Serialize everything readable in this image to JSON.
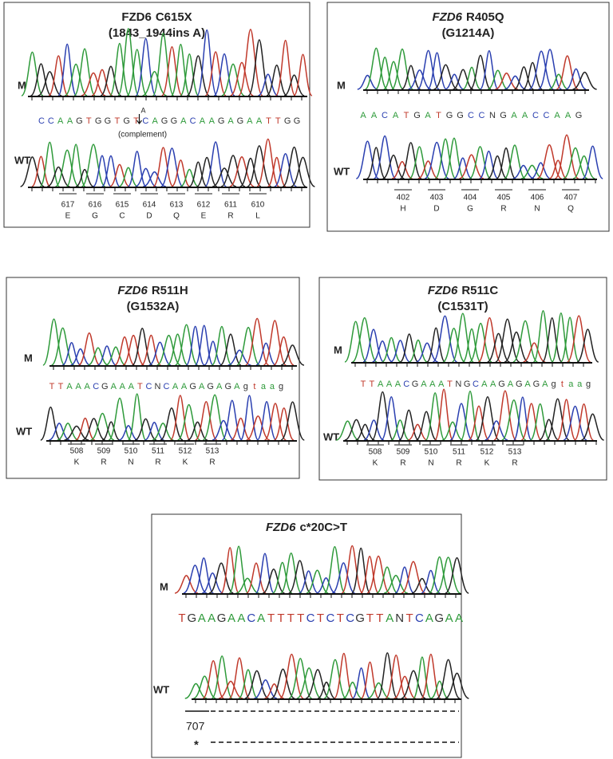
{
  "panels": [
    {
      "gene": "FZD6",
      "mutation": "C615X",
      "subtitle": "(1843_1944ins A)",
      "mutant_label": "M",
      "sequence": "CCAAGTGGTGTCAGGACAAGAGAATTGG",
      "insertion": "A",
      "insertion_note": "(complement)",
      "wildtype_label": "WT",
      "codons": [
        {
          "number": 617,
          "amino_acid": "E"
        },
        {
          "number": 616,
          "amino_acid": "G"
        },
        {
          "number": 615,
          "amino_acid": "C"
        },
        {
          "number": 614,
          "amino_acid": "D"
        },
        {
          "number": 613,
          "amino_acid": "Q"
        },
        {
          "number": 612,
          "amino_acid": "E"
        },
        {
          "number": 611,
          "amino_acid": "R"
        },
        {
          "number": 610,
          "amino_acid": "L"
        }
      ]
    },
    {
      "gene": "FZD6",
      "mutation": "R405Q",
      "subtitle": "(G1214A)",
      "mutant_label": "M",
      "sequence": "AACATGATGGCCNGAACCAAG",
      "wildtype_label": "WT",
      "codons": [
        {
          "number": 402,
          "amino_acid": "H"
        },
        {
          "number": 403,
          "amino_acid": "D"
        },
        {
          "number": 404,
          "amino_acid": "G"
        },
        {
          "number": 405,
          "amino_acid": "R"
        },
        {
          "number": 406,
          "amino_acid": "N"
        },
        {
          "number": 407,
          "amino_acid": "Q"
        }
      ]
    },
    {
      "gene": "FZD6",
      "mutation": "R511H",
      "subtitle": "(G1532A)",
      "mutant_label": "M",
      "sequence": "TTAAACGAAATCNCAAGAGAGAgtaag",
      "wildtype_label": "WT",
      "codons": [
        {
          "number": 508,
          "amino_acid": "K"
        },
        {
          "number": 509,
          "amino_acid": "R"
        },
        {
          "number": 510,
          "amino_acid": "N"
        },
        {
          "number": 511,
          "amino_acid": "R"
        },
        {
          "number": 512,
          "amino_acid": "K"
        },
        {
          "number": 513,
          "amino_acid": "R"
        }
      ]
    },
    {
      "gene": "FZD6",
      "mutation": "R511C",
      "subtitle": "(C1531T)",
      "mutant_label": "M",
      "sequence": "TTAAACGAAATNGCAAGAGAGAgtaag",
      "wildtype_label": "WT",
      "codons": [
        {
          "number": 508,
          "amino_acid": "K"
        },
        {
          "number": 509,
          "amino_acid": "R"
        },
        {
          "number": 510,
          "amino_acid": "N"
        },
        {
          "number": 511,
          "amino_acid": "R"
        },
        {
          "number": 512,
          "amino_acid": "K"
        },
        {
          "number": 513,
          "amino_acid": "R"
        }
      ]
    },
    {
      "gene": "FZD6",
      "mutation": "c*20C>T",
      "mutant_label": "M",
      "sequence": "TGAAGAACATTTTCTCTCGTTANTCAGAA",
      "wildtype_label": "WT",
      "position_label": 707,
      "stop_marker": "*"
    }
  ]
}
